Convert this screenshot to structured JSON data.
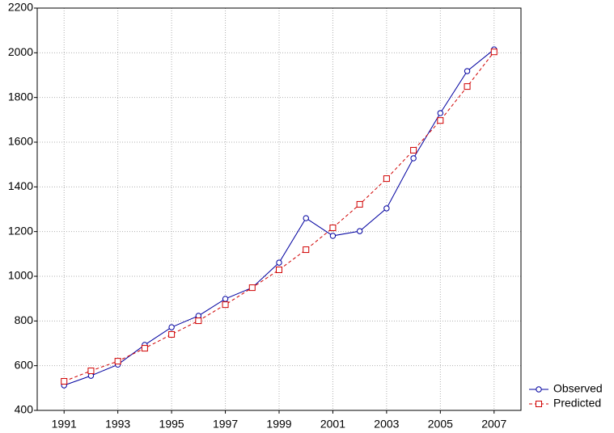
{
  "chart_data": {
    "type": "line",
    "x": [
      1991,
      1992,
      1993,
      1994,
      1995,
      1996,
      1997,
      1998,
      1999,
      2000,
      2001,
      2002,
      2003,
      2004,
      2005,
      2006,
      2007
    ],
    "series": [
      {
        "name": "Observed",
        "color": "#0000a0",
        "marker": "circle",
        "dash": false,
        "values": [
          512,
          555,
          605,
          693,
          772,
          823,
          899,
          949,
          1061,
          1260,
          1181,
          1202,
          1304,
          1528,
          1730,
          1918,
          2015
        ]
      },
      {
        "name": "Predicted",
        "color": "#d00000",
        "marker": "square",
        "dash": true,
        "values": [
          530,
          577,
          620,
          678,
          740,
          801,
          873,
          949,
          1029,
          1119,
          1217,
          1322,
          1437,
          1564,
          1697,
          1849,
          2004
        ]
      }
    ],
    "xlim": [
      1990,
      2008
    ],
    "xticks": [
      1991,
      1993,
      1995,
      1997,
      1999,
      2001,
      2003,
      2005,
      2007
    ],
    "ylim": [
      400,
      2200
    ],
    "yticks": [
      400,
      600,
      800,
      1000,
      1200,
      1400,
      1600,
      1800,
      2000,
      2200
    ],
    "grid": true,
    "legend": "bottom-right"
  }
}
